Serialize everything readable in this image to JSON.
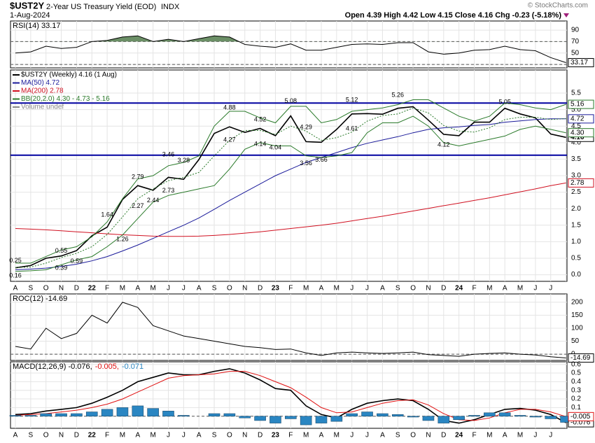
{
  "header": {
    "symbol": "$UST2Y",
    "name": "2-Year US Treasury Yield (EOD)",
    "exchange": "INDX",
    "date": "1-Aug-2024",
    "credit": "© StockCharts.com",
    "quote": "Open 4.39  High 4.42  Low 4.15  Close 4.16  Chg -0.23 (-5.18%)"
  },
  "chart_data": [
    {
      "type": "line",
      "legend_layout": "row",
      "ylim": [
        24,
        106
      ],
      "yticks": [
        30,
        50,
        70,
        90
      ],
      "reference_lines": [
        30,
        70
      ],
      "fill_above": 70,
      "fill_color": "#6b8f66",
      "series": [
        {
          "name": "RSI(14) 33.17",
          "color": "#000000",
          "tag": 33.17,
          "values": [
            50,
            52,
            62,
            58,
            60,
            70,
            72,
            78,
            80,
            70,
            74,
            70,
            75,
            80,
            78,
            65,
            62,
            60,
            66,
            55,
            55,
            60,
            65,
            66,
            65,
            68,
            68,
            52,
            48,
            50,
            55,
            56,
            62,
            56,
            54,
            42,
            33.17
          ]
        }
      ]
    },
    {
      "type": "line",
      "legend_layout": "column",
      "ylim": [
        -0.2,
        6.2
      ],
      "yticks": [
        {
          "value": 0,
          "label": "0.0"
        },
        0.5,
        {
          "value": 1,
          "label": "1.0"
        },
        1.5,
        {
          "value": 2,
          "label": "2.0"
        },
        2.5,
        {
          "value": 3,
          "label": "3.0"
        },
        3.5,
        {
          "value": 4,
          "label": "4.0"
        },
        4.5,
        {
          "value": 5,
          "label": "5.0"
        },
        5.5
      ],
      "categories": [
        "A",
        "S",
        "O",
        "N",
        "D",
        "22",
        "F",
        "M",
        "A",
        "M",
        "J",
        "J",
        "A",
        "S",
        "O",
        "N",
        "D",
        "23",
        "F",
        "M",
        "A",
        "M",
        "J",
        "J",
        "A",
        "S",
        "O",
        "N",
        "D",
        "24",
        "F",
        "M",
        "A",
        "M",
        "J",
        "J",
        null
      ],
      "hlines": [
        5.2,
        3.62
      ],
      "hline_color": "#0000a0",
      "legend_extra": [
        "Volume undef"
      ],
      "series": [
        {
          "name": "$UST2Y (Weekly) 4.16 (1 Aug)",
          "color": "#000000",
          "width": 1.6,
          "tag": 4.16,
          "values": [
            0.21,
            0.28,
            0.5,
            0.57,
            0.73,
            1.18,
            1.44,
            2.28,
            2.7,
            2.56,
            2.95,
            2.89,
            3.49,
            4.28,
            4.48,
            4.31,
            4.43,
            4.21,
            4.81,
            4.03,
            4.01,
            4.4,
            4.87,
            4.88,
            4.86,
            5.04,
            5.09,
            4.68,
            4.25,
            4.21,
            4.62,
            4.62,
            5.04,
            4.87,
            4.75,
            4.26,
            4.16
          ]
        },
        {
          "name": "MA(50) 4.72",
          "color": "#1a1a9a",
          "tag": 4.72,
          "values": [
            0.15,
            0.17,
            0.2,
            0.25,
            0.32,
            0.42,
            0.55,
            0.72,
            0.9,
            1.1,
            1.3,
            1.5,
            1.72,
            1.98,
            2.25,
            2.5,
            2.75,
            3.0,
            3.2,
            3.4,
            3.55,
            3.7,
            3.85,
            3.98,
            4.08,
            4.18,
            4.3,
            4.4,
            4.45,
            4.48,
            4.52,
            4.55,
            4.62,
            4.66,
            4.7,
            4.72,
            4.72
          ]
        },
        {
          "name": "MA(200) 2.78",
          "color": "#d01020",
          "tag": 2.78,
          "values": [
            1.4,
            1.38,
            1.36,
            1.33,
            1.3,
            1.27,
            1.24,
            1.21,
            1.19,
            1.17,
            1.16,
            1.16,
            1.17,
            1.19,
            1.22,
            1.26,
            1.3,
            1.35,
            1.4,
            1.45,
            1.5,
            1.56,
            1.63,
            1.7,
            1.77,
            1.85,
            1.93,
            2.01,
            2.09,
            2.17,
            2.25,
            2.33,
            2.42,
            2.51,
            2.6,
            2.7,
            2.78
          ]
        },
        {
          "name": "BB(20,2.0) 4.30 - 4.73 - 5.16",
          "color": "#2a7a2a",
          "tag": 5.16,
          "values": [
            0.35,
            0.35,
            0.55,
            0.75,
            0.85,
            1.15,
            1.6,
            2.3,
            2.9,
            3.0,
            3.3,
            3.4,
            3.6,
            4.5,
            4.95,
            4.95,
            4.75,
            4.6,
            5.1,
            5.1,
            4.6,
            4.7,
            4.95,
            5.0,
            5.05,
            5.15,
            5.3,
            5.3,
            5.05,
            4.8,
            4.65,
            4.8,
            5.2,
            5.15,
            5.05,
            5.0,
            5.16
          ]
        },
        {
          "color": "#2a7a2a",
          "dash": "2,2",
          "values": [
            0.22,
            0.23,
            0.35,
            0.52,
            0.65,
            0.85,
            1.22,
            1.75,
            2.3,
            2.6,
            2.85,
            2.95,
            3.1,
            3.6,
            4.07,
            4.37,
            4.37,
            4.25,
            4.5,
            4.35,
            4.07,
            4.15,
            4.32,
            4.65,
            4.82,
            4.87,
            5.05,
            4.9,
            4.52,
            4.35,
            4.32,
            4.45,
            4.7,
            4.77,
            4.77,
            4.7,
            4.73
          ]
        },
        {
          "color": "#2a7a2a",
          "tag": {
            "value": 4.3,
            "label": "4.30"
          },
          "values": [
            0.1,
            0.12,
            0.15,
            0.3,
            0.45,
            0.55,
            0.85,
            1.2,
            1.7,
            2.2,
            2.4,
            2.5,
            2.6,
            2.7,
            3.2,
            3.8,
            4.0,
            3.9,
            3.9,
            3.6,
            3.55,
            3.6,
            3.7,
            4.3,
            4.6,
            4.6,
            4.8,
            4.5,
            4.0,
            3.9,
            4.0,
            4.1,
            4.2,
            4.4,
            4.5,
            4.4,
            4.3
          ]
        }
      ],
      "annotations": [
        {
          "x": 0,
          "value": 0.25,
          "placement": "above"
        },
        {
          "x": 0,
          "value": 0.16,
          "placement": "below"
        },
        {
          "x": 3,
          "value": 0.55,
          "placement": "above"
        },
        {
          "x": 3,
          "value": 0.39,
          "placement": "below"
        },
        {
          "x": 4,
          "value": 0.59,
          "placement": "below"
        },
        {
          "x": 6,
          "value": 1.64,
          "placement": "above"
        },
        {
          "x": 7,
          "value": 1.26,
          "placement": "below"
        },
        {
          "x": 8,
          "value": 2.79,
          "placement": "above"
        },
        {
          "x": 8,
          "value": 2.27,
          "placement": "below"
        },
        {
          "x": 9,
          "value": 2.44,
          "placement": "below"
        },
        {
          "x": 10,
          "value": 3.46,
          "placement": "above"
        },
        {
          "x": 10,
          "value": 2.73,
          "placement": "below"
        },
        {
          "x": 11,
          "value": 3.28,
          "placement": "above"
        },
        {
          "x": 14,
          "value": 4.88,
          "placement": "above"
        },
        {
          "x": 14,
          "value": 4.27,
          "placement": "below"
        },
        {
          "x": 16,
          "value": 4.52,
          "placement": "above"
        },
        {
          "x": 16,
          "value": 4.14,
          "placement": "below"
        },
        {
          "x": 18,
          "value": 5.08,
          "placement": "above"
        },
        {
          "x": 17,
          "value": 4.04,
          "placement": "below"
        },
        {
          "x": 19,
          "value": 4.29,
          "placement": "above"
        },
        {
          "x": 19,
          "value": 3.56,
          "placement": "below"
        },
        {
          "x": 20,
          "value": 3.66,
          "placement": "below"
        },
        {
          "x": 22,
          "value": 5.12,
          "placement": "above"
        },
        {
          "x": 22,
          "value": 4.61,
          "placement": "below"
        },
        {
          "x": 25,
          "value": 5.26,
          "placement": "above"
        },
        {
          "x": 28,
          "value": 4.12,
          "placement": "below"
        },
        {
          "x": 32,
          "value": 5.05,
          "placement": "above"
        }
      ]
    },
    {
      "type": "line",
      "legend_layout": "row",
      "ylim": [
        -24,
        232
      ],
      "yticks": [
        0,
        50,
        100,
        150,
        200
      ],
      "reference_lines": [
        0
      ],
      "series": [
        {
          "name": "ROC(12) -14.69",
          "color": "#000000",
          "tag": -14.69,
          "values": [
            30,
            20,
            100,
            60,
            80,
            150,
            120,
            200,
            180,
            110,
            90,
            70,
            60,
            50,
            40,
            30,
            25,
            18,
            20,
            5,
            -5,
            5,
            8,
            5,
            3,
            5,
            8,
            -2,
            -5,
            -8,
            0,
            3,
            5,
            0,
            -3,
            -10,
            -14.69
          ]
        }
      ]
    },
    {
      "type": "line",
      "legend_layout": "row",
      "ylim": [
        -0.14,
        0.63
      ],
      "yticks": [
        0.1,
        0.2,
        0.3,
        0.4,
        0.5,
        0.6
      ],
      "reference_lines": [
        0
      ],
      "categories": [
        "A",
        "S",
        "O",
        "N",
        "D",
        "22",
        "F",
        "M",
        "A",
        "M",
        "J",
        "J",
        "A",
        "S",
        "O",
        "N",
        "D",
        "23",
        "F",
        "M",
        "A",
        "M",
        "J",
        "J",
        "A",
        "S",
        "O",
        "N",
        "D",
        "24",
        "F",
        "M",
        "A",
        "M",
        "J",
        "J",
        null
      ],
      "series": [
        {
          "name": "MACD(12,26,9) -0.076,",
          "color": "#000000",
          "width": 1.6,
          "tag": -0.076,
          "values": [
            0.02,
            0.03,
            0.06,
            0.08,
            0.1,
            0.15,
            0.22,
            0.3,
            0.4,
            0.45,
            0.5,
            0.48,
            0.48,
            0.52,
            0.55,
            0.5,
            0.42,
            0.32,
            0.3,
            0.12,
            0.02,
            -0.02,
            0.08,
            0.15,
            0.18,
            0.2,
            0.18,
            0.08,
            -0.05,
            -0.08,
            -0.04,
            0.02,
            0.08,
            0.09,
            0.07,
            0.02,
            -0.076
          ]
        },
        {
          "name": "-0.005,",
          "color": "#e01010",
          "tag": -0.005,
          "values": [
            0.01,
            0.02,
            0.03,
            0.05,
            0.07,
            0.1,
            0.14,
            0.2,
            0.28,
            0.36,
            0.44,
            0.47,
            0.48,
            0.49,
            0.52,
            0.52,
            0.47,
            0.4,
            0.33,
            0.22,
            0.1,
            0.04,
            0.05,
            0.1,
            0.15,
            0.18,
            0.19,
            0.13,
            0.03,
            -0.04,
            -0.05,
            -0.02,
            0.04,
            0.08,
            0.08,
            0.05,
            -0.005
          ]
        },
        {
          "name": "-0.071",
          "color": "#2a86c2",
          "type": "bar",
          "values": [
            0.01,
            0.01,
            0.03,
            0.03,
            0.03,
            0.05,
            0.08,
            0.1,
            0.12,
            0.09,
            0.06,
            0.01,
            0.0,
            0.03,
            0.03,
            -0.02,
            -0.05,
            -0.08,
            -0.03,
            -0.1,
            -0.08,
            -0.06,
            0.03,
            0.05,
            0.03,
            0.02,
            -0.01,
            -0.05,
            -0.08,
            -0.04,
            0.01,
            0.04,
            0.04,
            0.01,
            -0.01,
            -0.03,
            -0.071
          ]
        }
      ]
    }
  ]
}
